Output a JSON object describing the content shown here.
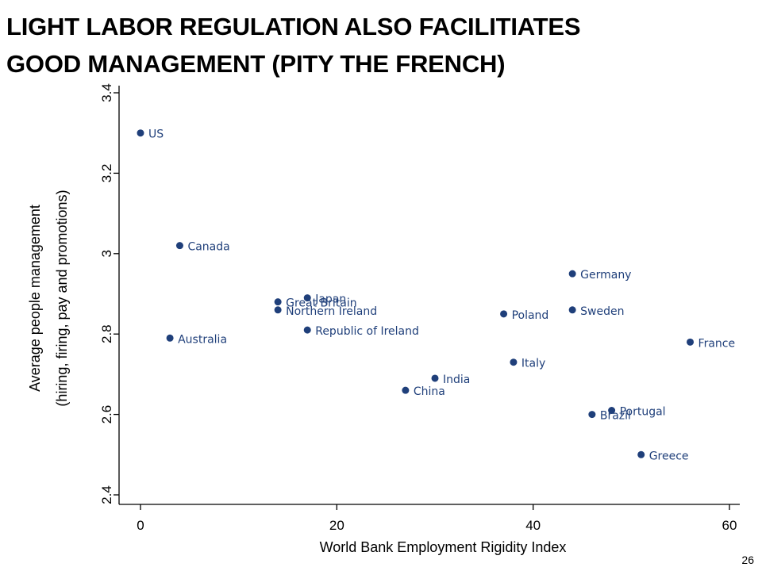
{
  "slide": {
    "title_lines": [
      "LIGHT LABOR REGULATION ALSO FACILITIATES",
      "GOOD MANAGEMENT (PITY THE FRENCH)"
    ],
    "page_number": "26"
  },
  "colors": {
    "marker": "#1f3f7a",
    "label": "#1f3f7a",
    "axis": "#000000"
  },
  "chart_data": {
    "type": "scatter",
    "xlabel": "World Bank Employment Rigidity Index",
    "ylabel_lines": [
      "Average people management",
      "(hiring, firing, pay and promotions)"
    ],
    "xlim": [
      0,
      60
    ],
    "ylim": [
      2.4,
      3.4
    ],
    "x_ticks": [
      0,
      20,
      40,
      60
    ],
    "x_tick_labels": [
      "0",
      "20",
      "40",
      "60"
    ],
    "y_ticks": [
      2.4,
      2.6,
      2.8,
      3,
      3.2,
      3.4
    ],
    "y_tick_labels": [
      "2.4",
      "2.6",
      "2.8",
      "3",
      "3.2",
      "3.4"
    ],
    "grid": false,
    "points": [
      {
        "label": "US",
        "x": 0,
        "y": 3.3
      },
      {
        "label": "Canada",
        "x": 4,
        "y": 3.02
      },
      {
        "label": "Australia",
        "x": 3,
        "y": 2.79
      },
      {
        "label": "Japan",
        "x": 17,
        "y": 2.89
      },
      {
        "label": "Great Britain",
        "x": 14,
        "y": 2.88
      },
      {
        "label": "Northern Ireland",
        "x": 14,
        "y": 2.86
      },
      {
        "label": "Republic of Ireland",
        "x": 17,
        "y": 2.81
      },
      {
        "label": "India",
        "x": 30,
        "y": 2.69
      },
      {
        "label": "China",
        "x": 27,
        "y": 2.66
      },
      {
        "label": "Germany",
        "x": 44,
        "y": 2.95
      },
      {
        "label": "Poland",
        "x": 37,
        "y": 2.85
      },
      {
        "label": "Sweden",
        "x": 44,
        "y": 2.86
      },
      {
        "label": "Italy",
        "x": 38,
        "y": 2.73
      },
      {
        "label": "France",
        "x": 56,
        "y": 2.78
      },
      {
        "label": "Brazil",
        "x": 46,
        "y": 2.6
      },
      {
        "label": "Portugal",
        "x": 48,
        "y": 2.61
      },
      {
        "label": "Greece",
        "x": 51,
        "y": 2.5
      }
    ]
  }
}
